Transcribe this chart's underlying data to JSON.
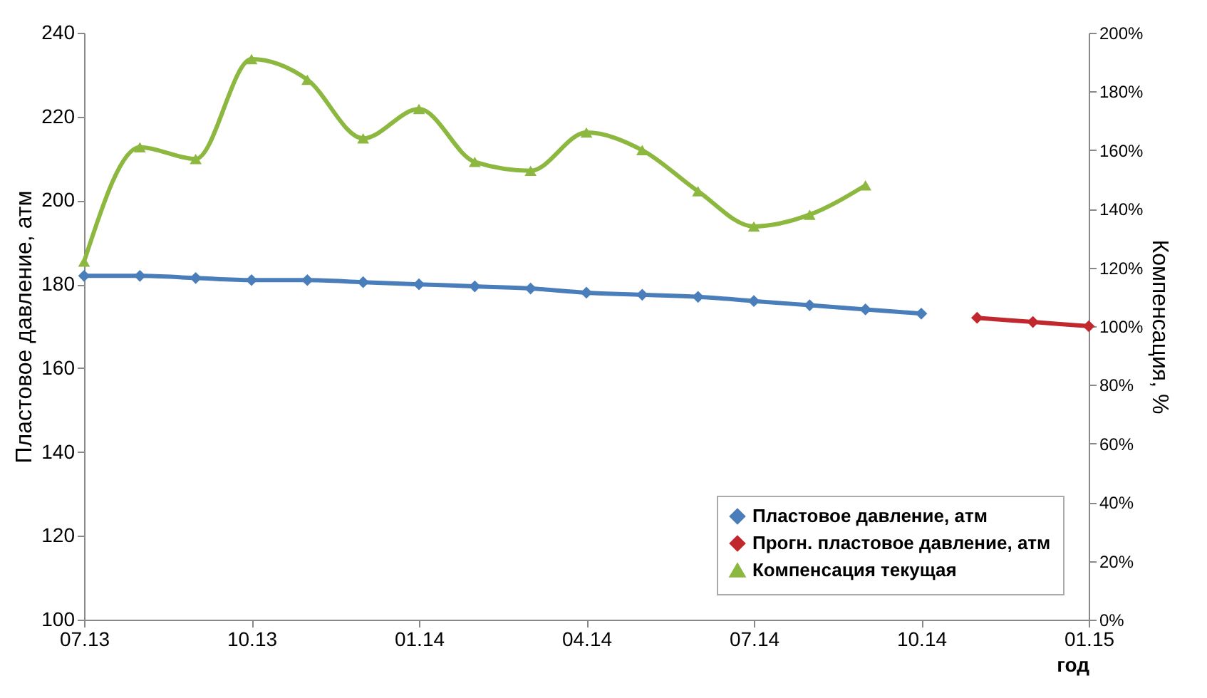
{
  "chart_data": {
    "type": "line",
    "xlabel": "год",
    "ylabel": "Пластовое давление, атм",
    "y2label": "Компенсация, %",
    "categories": [
      "07.13",
      null,
      null,
      "10.13",
      null,
      null,
      "01.14",
      null,
      null,
      "04.14",
      null,
      null,
      "07.14",
      null,
      null,
      "10.14",
      null,
      null,
      "01.15"
    ],
    "series": [
      {
        "name": "Пластовое давление, атм",
        "color": "#4a7ebb",
        "marker": "diamond",
        "values": [
          182,
          182,
          181.5,
          181,
          181,
          180.5,
          180,
          179.5,
          179,
          178,
          177.5,
          177,
          176,
          175,
          174,
          173,
          null,
          null,
          null
        ]
      },
      {
        "name": "Прогн. пластовое давление, атм",
        "color": "#c0282d",
        "marker": "diamond",
        "values": [
          null,
          null,
          null,
          null,
          null,
          null,
          null,
          null,
          null,
          null,
          null,
          null,
          null,
          null,
          null,
          null,
          172,
          171,
          170
        ]
      },
      {
        "name": "Компенсация текущая",
        "color": "#8db840",
        "marker": "triangle",
        "axis": "y2",
        "values": [
          122,
          161,
          157,
          191,
          184,
          164,
          174,
          156,
          153,
          166,
          160,
          146,
          134,
          138,
          148,
          null,
          null,
          null,
          null
        ]
      }
    ],
    "ylim": [
      100,
      240
    ],
    "yticks": [
      100,
      120,
      140,
      160,
      180,
      200,
      220,
      240
    ],
    "y2lim": [
      0,
      200
    ],
    "y2ticks": [
      {
        "value": 0,
        "label": "0%"
      },
      {
        "value": 20,
        "label": "20%"
      },
      {
        "value": 40,
        "label": "40%"
      },
      {
        "value": 60,
        "label": "60%"
      },
      {
        "value": 80,
        "label": "80%"
      },
      {
        "value": 100,
        "label": "100%"
      },
      {
        "value": 120,
        "label": "120%"
      },
      {
        "value": 140,
        "label": "140%"
      },
      {
        "value": 160,
        "label": "160%"
      },
      {
        "value": 180,
        "label": "180%"
      },
      {
        "value": 200,
        "label": "200%"
      }
    ],
    "grid": false,
    "legend": "bottom right"
  }
}
